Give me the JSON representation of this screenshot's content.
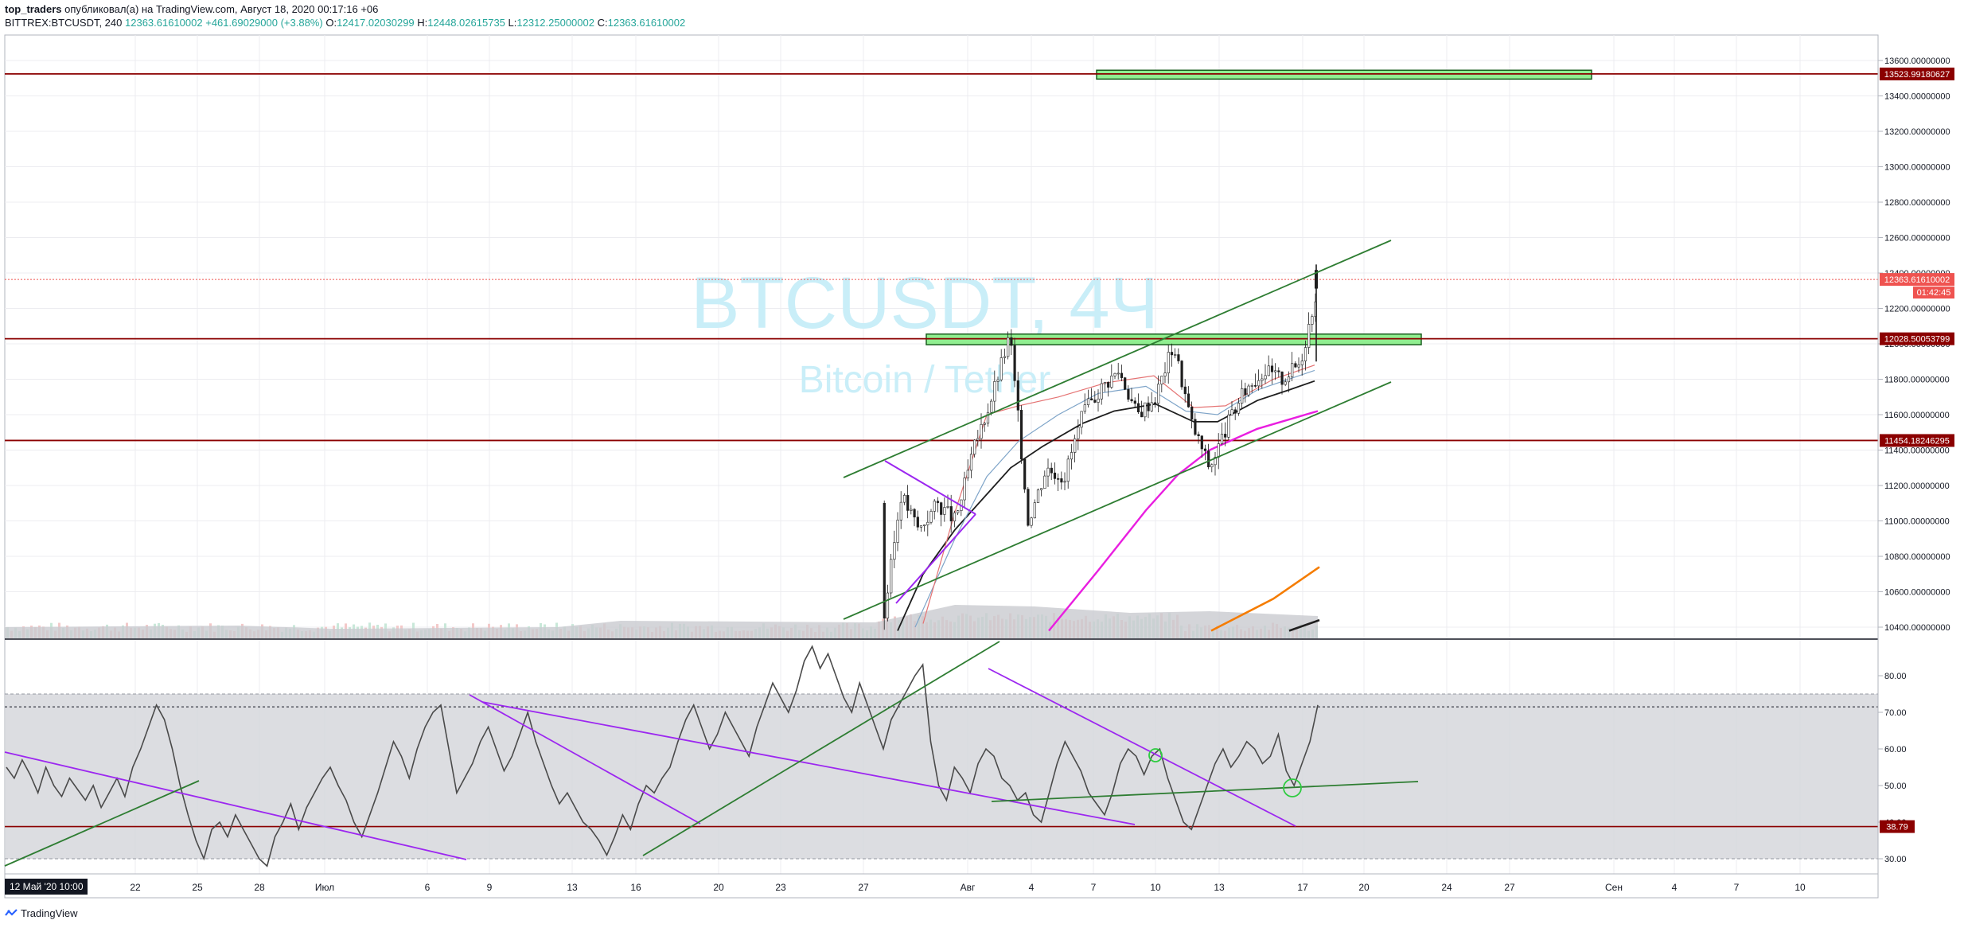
{
  "header": {
    "author": "top_traders",
    "published_text": "опубликовал(а) на TradingView.com, Август 18, 2020 00:17:16 +06",
    "symbol": "BITTREX:BTCUSDT, 240",
    "last": "12363.61610002",
    "change": "+461.69029000 (+3.88%)",
    "o_label": "O:",
    "o": "12417.02030299",
    "h_label": "H:",
    "h": "12448.02615735",
    "l_label": "L:",
    "l": "12312.25000002",
    "c_label": "C:",
    "c": "12363.61610002"
  },
  "watermark": {
    "symbol": "BTCUSDT, 4Ч",
    "name": "Bitcoin / Tether"
  },
  "footer": {
    "brand": "TradingView",
    "date_badge": "12 Май '20   10:00"
  },
  "colors": {
    "up": "#26a69a",
    "down": "#ef5350",
    "level": "#8b0000",
    "zone": "#90ee90",
    "trend_green": "#2e7d32",
    "purple": "#9c27f0",
    "magenta": "#e91ee0",
    "orange": "#f57c00"
  },
  "chart_data": [
    {
      "type": "candlestick",
      "title": "BITTREX:BTCUSDT, 240",
      "ylim": [
        10360,
        13690
      ],
      "y_ticks": [
        "13600.00000000",
        "13400.00000000",
        "13200.00000000",
        "13000.00000000",
        "12800.00000000",
        "12600.00000000",
        "12400.00000000",
        "12200.00000000",
        "12000.00000000",
        "11800.00000000",
        "11600.00000000",
        "11400.00000000",
        "11200.00000000",
        "11000.00000000",
        "10800.00000000",
        "10600.00000000",
        "10400.00000000"
      ],
      "horizontal_levels": [
        {
          "value": 13523.99180627,
          "label": "13523.99180627"
        },
        {
          "value": 12028.50053799,
          "label": "12028.50053799"
        },
        {
          "value": 11454.18246295,
          "label": "11454.18246295"
        }
      ],
      "last_price": {
        "value": 12363.61610002,
        "label": "12363.61610002",
        "countdown": "01:42:45"
      },
      "x_labels": [
        "22",
        "25",
        "28",
        "Июл",
        "6",
        "9",
        "13",
        "16",
        "20",
        "23",
        "27",
        "Авг",
        "4",
        "7",
        "10",
        "13",
        "17",
        "20",
        "24",
        "27",
        "Сен",
        "4",
        "7",
        "10"
      ],
      "price_path": [
        {
          "x": "27 Jul",
          "y": 10400
        },
        {
          "x": "27 Jul",
          "y": 11150
        },
        {
          "x": "28 Jul",
          "y": 10950
        },
        {
          "x": "29 Jul",
          "y": 11100
        },
        {
          "x": "30 Jul",
          "y": 11000
        },
        {
          "x": "31 Jul",
          "y": 11400
        },
        {
          "x": "1 Aug",
          "y": 11700
        },
        {
          "x": "2 Aug",
          "y": 12050
        },
        {
          "x": "2 Aug",
          "y": 11000
        },
        {
          "x": "3 Aug",
          "y": 11300
        },
        {
          "x": "4 Aug",
          "y": 11250
        },
        {
          "x": "5 Aug",
          "y": 11600
        },
        {
          "x": "6 Aug",
          "y": 11750
        },
        {
          "x": "7 Aug",
          "y": 11850
        },
        {
          "x": "8 Aug",
          "y": 11600
        },
        {
          "x": "9 Aug",
          "y": 11700
        },
        {
          "x": "10 Aug",
          "y": 12000
        },
        {
          "x": "11 Aug",
          "y": 11550
        },
        {
          "x": "12 Aug",
          "y": 11300
        },
        {
          "x": "13 Aug",
          "y": 11550
        },
        {
          "x": "14 Aug",
          "y": 11750
        },
        {
          "x": "15 Aug",
          "y": 11850
        },
        {
          "x": "16 Aug",
          "y": 11800
        },
        {
          "x": "17 Aug",
          "y": 11900
        },
        {
          "x": "17 Aug",
          "y": 12363
        }
      ]
    },
    {
      "type": "line",
      "title": "",
      "ylim": [
        25,
        92
      ],
      "y_ticks": [
        "80.00",
        "70.00",
        "60.00",
        "50.00",
        "40.00",
        "30.00"
      ],
      "band": [
        30,
        75
      ],
      "dashed_level": 71.5,
      "horizontal_levels": [
        {
          "value": 38.79,
          "label": "38.79"
        }
      ],
      "values": [
        55,
        52,
        57,
        53,
        48,
        55,
        50,
        47,
        52,
        49,
        46,
        50,
        44,
        48,
        52,
        47,
        55,
        60,
        66,
        72,
        68,
        60,
        50,
        42,
        35,
        30,
        38,
        40,
        36,
        42,
        38,
        34,
        30,
        28,
        36,
        40,
        45,
        38,
        44,
        48,
        52,
        55,
        50,
        46,
        40,
        36,
        42,
        48,
        55,
        62,
        58,
        52,
        60,
        66,
        70,
        72,
        60,
        48,
        52,
        56,
        62,
        66,
        60,
        54,
        58,
        64,
        70,
        62,
        56,
        50,
        45,
        48,
        44,
        40,
        38,
        35,
        31,
        36,
        42,
        38,
        45,
        50,
        48,
        52,
        55,
        62,
        68,
        72,
        66,
        60,
        64,
        70,
        66,
        62,
        58,
        66,
        72,
        78,
        74,
        70,
        76,
        84,
        88,
        82,
        86,
        80,
        74,
        70,
        78,
        72,
        66,
        60,
        68,
        72,
        76,
        80,
        83,
        62,
        50,
        46,
        55,
        52,
        48,
        56,
        60,
        58,
        52,
        50,
        46,
        48,
        42,
        40,
        48,
        56,
        62,
        58,
        54,
        48,
        45,
        42,
        48,
        56,
        60,
        58,
        53,
        58,
        60,
        52,
        46,
        40,
        38,
        44,
        50,
        56,
        60,
        55,
        58,
        62,
        60,
        56,
        58,
        64,
        54,
        50,
        56,
        62,
        72
      ]
    }
  ]
}
